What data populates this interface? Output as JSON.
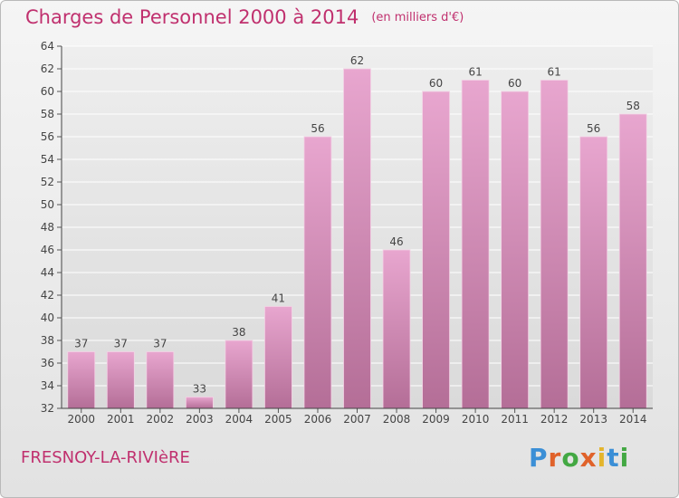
{
  "title": "Charges de Personnel 2000 à 2014",
  "unit": "(en milliers d'€)",
  "town": "FRESNOY-LA-RIVIèRE",
  "logo": {
    "text": "Proxiti",
    "letter_colors": [
      "#3b8fd6",
      "#e0622a",
      "#43a843",
      "#e0622a",
      "#e4b52c",
      "#3b8fd6",
      "#43a843"
    ]
  },
  "colors": {
    "title": "#c0306e",
    "bar_light": "#e8a6cf",
    "bar_dark": "#b46e97",
    "grid": "#ffffff"
  },
  "chart_data": {
    "type": "bar",
    "title": "Charges de Personnel 2000 à 2014",
    "ylabel": "(en milliers d'€)",
    "xlabel": "",
    "categories": [
      "2000",
      "2001",
      "2002",
      "2003",
      "2004",
      "2005",
      "2006",
      "2007",
      "2008",
      "2009",
      "2010",
      "2011",
      "2012",
      "2013",
      "2014"
    ],
    "values": [
      37,
      37,
      37,
      33,
      38,
      41,
      56,
      62,
      46,
      60,
      61,
      60,
      61,
      56,
      58
    ],
    "ylim": [
      32,
      64
    ],
    "yticks": [
      32,
      34,
      36,
      38,
      40,
      42,
      44,
      46,
      48,
      50,
      52,
      54,
      56,
      58,
      60,
      62,
      64
    ],
    "grid": true,
    "legend": "none"
  }
}
